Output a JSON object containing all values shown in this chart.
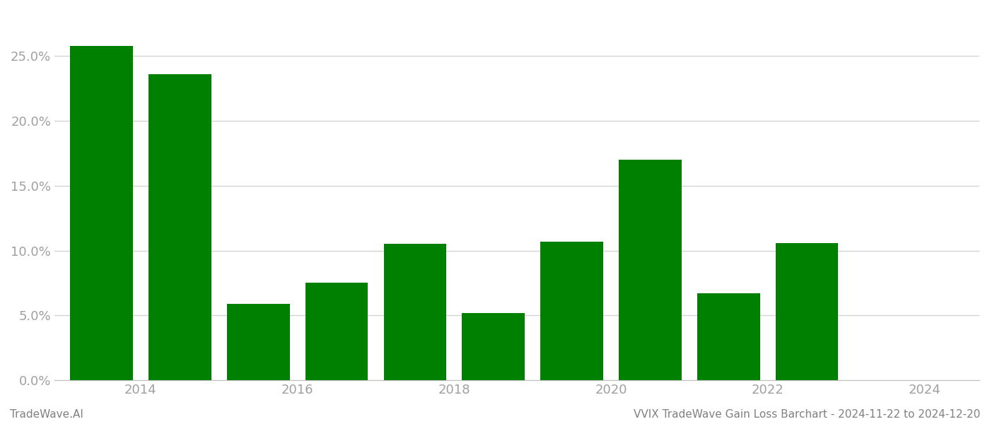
{
  "bar_positions": [
    0,
    1,
    2,
    3,
    4,
    5,
    6,
    7,
    8,
    9
  ],
  "values": [
    0.258,
    0.236,
    0.059,
    0.075,
    0.105,
    0.052,
    0.107,
    0.17,
    0.067,
    0.106
  ],
  "bar_color": "#008000",
  "background_color": "#ffffff",
  "tick_label_color": "#a0a0a0",
  "grid_color": "#d3d3d3",
  "footer_left": "TradeWave.AI",
  "footer_right": "VVIX TradeWave Gain Loss Barchart - 2024-11-22 to 2024-12-20",
  "footer_color": "#808080",
  "footer_fontsize": 11,
  "ylim": [
    0,
    0.285
  ],
  "yticks": [
    0.0,
    0.05,
    0.1,
    0.15,
    0.2,
    0.25
  ],
  "xtick_labels": [
    "2014",
    "2016",
    "2018",
    "2020",
    "2022",
    "2024"
  ],
  "xtick_positions": [
    0.5,
    2.5,
    4.5,
    6.5,
    8.5,
    10.5
  ],
  "bar_width": 0.8,
  "xlim": [
    -0.6,
    11.2
  ]
}
